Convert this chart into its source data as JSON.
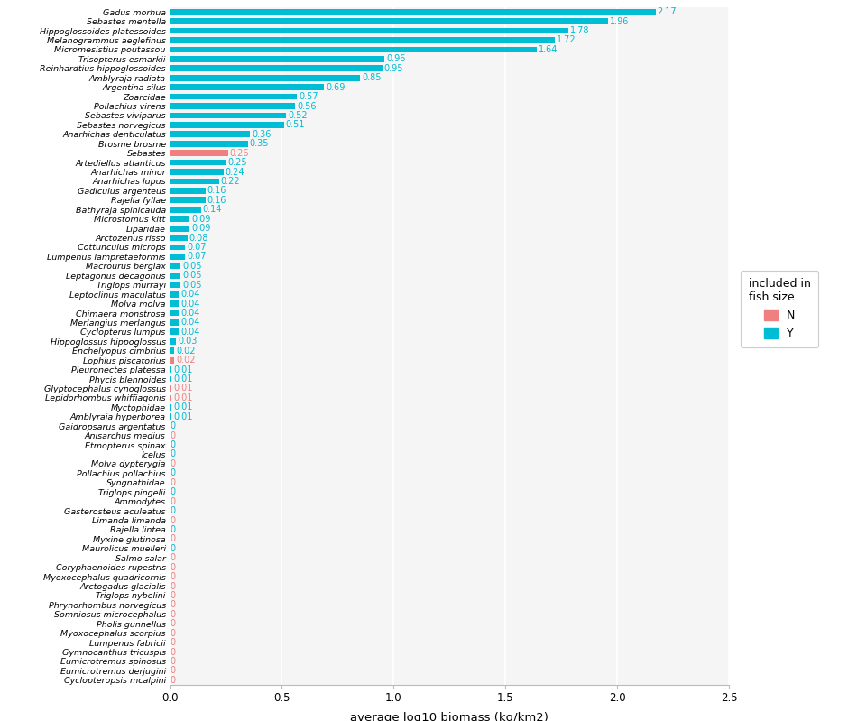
{
  "species": [
    "Gadus morhua",
    "Sebastes mentella",
    "Hippoglossoides platessoides",
    "Melanogrammus aeglefinus",
    "Micromesistius poutassou",
    "Trisopterus esmarkii",
    "Reinhardtius hippoglossoides",
    "Amblyraja radiata",
    "Argentina silus",
    "Zoarcidae",
    "Pollachius virens",
    "Sebastes viviparus",
    "Sebastes norvegicus",
    "Anarhichas denticulatus",
    "Brosme brosme",
    "Sebastes",
    "Artediellus atlanticus",
    "Anarhichas minor",
    "Anarhichas lupus",
    "Gadiculus argenteus",
    "Rajella fyllae",
    "Bathyraja spinicauda",
    "Microstomus kitt",
    "Liparidae",
    "Arctozenus risso",
    "Cottunculus microps",
    "Lumpenus lampretaeformis",
    "Macrourus berglax",
    "Leptagonus decagonus",
    "Triglops murrayi",
    "Leptoclinus maculatus",
    "Molva molva",
    "Chimaera monstrosa",
    "Merlangius merlangus",
    "Cyclopterus lumpus",
    "Hippoglossus hippoglossus",
    "Enchelyopus cimbrius",
    "Lophius piscatorius",
    "Pleuronectes platessa",
    "Phycis blennoides",
    "Glyptocephalus cynoglossus",
    "Lepidorhombus whiffiagonis",
    "Myctophidae",
    "Amblyraja hyperborea",
    "Gaidropsarus argentatus",
    "Anisarchus medius",
    "Etmopterus spinax",
    "Icelus",
    "Molva dypterygia",
    "Pollachius pollachius",
    "Syngnathidae",
    "Triglops pingelii",
    "Ammodytes",
    "Gasterosteus aculeatus",
    "Limanda limanda",
    "Rajella lintea",
    "Myxine glutinosa",
    "Maurolicus muelleri",
    "Salmo salar",
    "Coryphaenoides rupestris",
    "Myoxocephalus quadricornis",
    "Arctogadus glacialis",
    "Triglops nybelini",
    "Phrynorhombus norvegicus",
    "Somniosus microcephalus",
    "Pholis gunnellus",
    "Myoxocephalus scorpius",
    "Lumpenus fabricii",
    "Gymnocanthus tricuspis",
    "Eumicrotremus spinosus",
    "Eumicrotremus derjugini",
    "Cyclopteropsis mcalpini"
  ],
  "values": [
    2.17,
    1.96,
    1.78,
    1.72,
    1.64,
    0.96,
    0.95,
    0.85,
    0.69,
    0.57,
    0.56,
    0.52,
    0.51,
    0.36,
    0.35,
    0.26,
    0.25,
    0.24,
    0.22,
    0.16,
    0.16,
    0.14,
    0.09,
    0.09,
    0.08,
    0.07,
    0.07,
    0.05,
    0.05,
    0.05,
    0.04,
    0.04,
    0.04,
    0.04,
    0.04,
    0.03,
    0.02,
    0.02,
    0.01,
    0.01,
    0.01,
    0.01,
    0.01,
    0.01,
    0.0,
    0.0,
    0.0,
    0.0,
    0.0,
    0.0,
    0.0,
    0.0,
    0.0,
    0.0,
    0.0,
    0.0,
    0.0,
    0.0,
    0.0,
    0.0,
    0.0,
    0.0,
    0.0,
    0.0,
    0.0,
    0.0,
    0.0,
    0.0,
    0.0,
    0.0,
    0.0,
    0.0
  ],
  "included": [
    "Y",
    "Y",
    "Y",
    "Y",
    "Y",
    "Y",
    "Y",
    "Y",
    "Y",
    "Y",
    "Y",
    "Y",
    "Y",
    "Y",
    "Y",
    "N",
    "Y",
    "Y",
    "Y",
    "Y",
    "Y",
    "Y",
    "Y",
    "Y",
    "Y",
    "Y",
    "Y",
    "Y",
    "Y",
    "Y",
    "Y",
    "Y",
    "Y",
    "Y",
    "Y",
    "Y",
    "Y",
    "N",
    "Y",
    "Y",
    "N",
    "N",
    "Y",
    "Y",
    "Y",
    "N",
    "Y",
    "Y",
    "N",
    "Y",
    "N",
    "Y",
    "N",
    "Y",
    "N",
    "Y",
    "N",
    "Y",
    "N",
    "N",
    "N",
    "N",
    "N",
    "N",
    "N",
    "N",
    "N",
    "N",
    "N",
    "N",
    "N",
    "N"
  ],
  "label_values": [
    "2.17",
    "1.96",
    "1.78",
    "1.72",
    "1.64",
    "0.96",
    "0.95",
    "0.85",
    "0.69",
    "0.57",
    "0.56",
    "0.52",
    "0.51",
    "0.36",
    "0.35",
    "0.26",
    "0.25",
    "0.24",
    "0.22",
    "0.16",
    "0.16",
    "0.14",
    "0.09",
    "0.09",
    "0.08",
    "0.07",
    "0.07",
    "0.05",
    "0.05",
    "0.05",
    "0.04",
    "0.04",
    "0.04",
    "0.04",
    "0.04",
    "0.03",
    "0.02",
    "0.02",
    "0.01",
    "0.01",
    "0.01",
    "0.01",
    "0.01",
    "0.01",
    "0",
    "0",
    "0",
    "0",
    "0",
    "0",
    "0",
    "0",
    "0",
    "0",
    "0",
    "0",
    "0",
    "0",
    "0",
    "0",
    "0",
    "0",
    "0",
    "0",
    "0",
    "0",
    "0",
    "0",
    "0",
    "0",
    "0",
    "0"
  ],
  "color_Y": "#00BCD4",
  "color_N": "#F08080",
  "bg_color": "#f5f5f5",
  "plot_bg": "#ffffff",
  "xlabel": "average log10 biomass (kg/km2)",
  "legend_title": "included in\nfish size",
  "xlim": [
    0,
    2.5
  ],
  "xticks": [
    0.0,
    0.5,
    1.0,
    1.5,
    2.0,
    2.5
  ],
  "xtick_labels": [
    "0.0",
    "0.5",
    "1.0",
    "1.5",
    "2.0",
    "2.5"
  ]
}
